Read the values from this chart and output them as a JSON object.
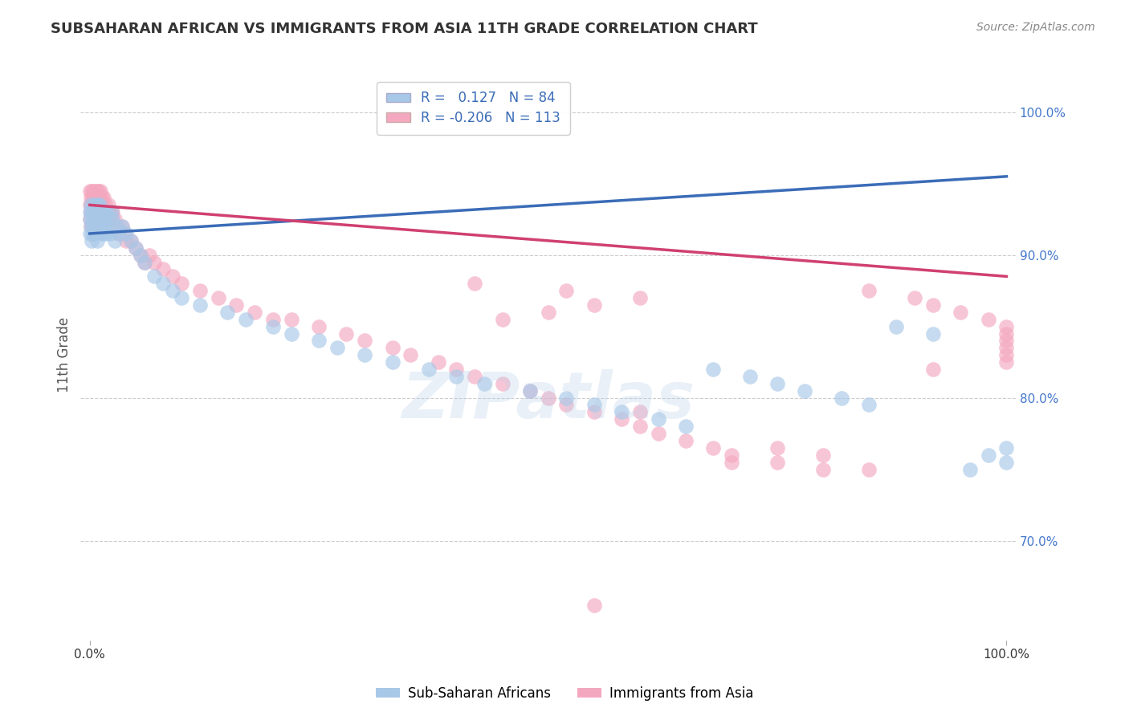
{
  "title": "SUBSAHARAN AFRICAN VS IMMIGRANTS FROM ASIA 11TH GRADE CORRELATION CHART",
  "source": "Source: ZipAtlas.com",
  "ylabel": "11th Grade",
  "r_blue": 0.127,
  "n_blue": 84,
  "r_pink": -0.206,
  "n_pink": 113,
  "blue_color": "#A8C8E8",
  "pink_color": "#F4A8C0",
  "line_blue": "#3B6CB7",
  "line_pink": "#D04070",
  "watermark": "ZIPatlas",
  "yticks": [
    70.0,
    80.0,
    90.0,
    100.0
  ],
  "ylim": [
    63.0,
    103.0
  ],
  "xlim": [
    -0.01,
    1.01
  ],
  "blue_line_x0": 0.0,
  "blue_line_y0": 91.5,
  "blue_line_x1": 1.0,
  "blue_line_y1": 95.5,
  "pink_line_x0": 0.0,
  "pink_line_y0": 93.5,
  "pink_line_x1": 1.0,
  "pink_line_y1": 88.5,
  "blue_scatter_x": [
    0.0,
    0.0,
    0.0,
    0.001,
    0.001,
    0.002,
    0.002,
    0.003,
    0.003,
    0.004,
    0.004,
    0.005,
    0.005,
    0.005,
    0.006,
    0.006,
    0.007,
    0.007,
    0.008,
    0.008,
    0.008,
    0.009,
    0.009,
    0.01,
    0.01,
    0.011,
    0.011,
    0.012,
    0.012,
    0.013,
    0.014,
    0.015,
    0.015,
    0.016,
    0.017,
    0.018,
    0.019,
    0.02,
    0.022,
    0.024,
    0.025,
    0.027,
    0.03,
    0.032,
    0.035,
    0.04,
    0.045,
    0.05,
    0.055,
    0.06,
    0.07,
    0.08,
    0.09,
    0.1,
    0.12,
    0.15,
    0.17,
    0.2,
    0.22,
    0.25,
    0.27,
    0.3,
    0.33,
    0.37,
    0.4,
    0.43,
    0.48,
    0.52,
    0.55,
    0.58,
    0.62,
    0.65,
    0.68,
    0.72,
    0.75,
    0.78,
    0.82,
    0.85,
    0.88,
    0.92,
    0.96,
    0.98,
    1.0,
    1.0
  ],
  "blue_scatter_y": [
    93.0,
    92.5,
    91.5,
    93.5,
    92.0,
    93.0,
    91.0,
    92.5,
    91.5,
    93.0,
    92.0,
    93.5,
    92.5,
    91.5,
    93.0,
    92.0,
    93.5,
    92.5,
    93.0,
    92.0,
    91.0,
    93.5,
    92.5,
    93.0,
    92.0,
    93.5,
    92.0,
    93.0,
    91.5,
    92.5,
    93.0,
    92.5,
    91.5,
    93.0,
    92.0,
    91.5,
    93.0,
    92.5,
    91.5,
    93.0,
    92.5,
    91.0,
    92.0,
    91.5,
    92.0,
    91.5,
    91.0,
    90.5,
    90.0,
    89.5,
    88.5,
    88.0,
    87.5,
    87.0,
    86.5,
    86.0,
    85.5,
    85.0,
    84.5,
    84.0,
    83.5,
    83.0,
    82.5,
    82.0,
    81.5,
    81.0,
    80.5,
    80.0,
    79.5,
    79.0,
    78.5,
    78.0,
    82.0,
    81.5,
    81.0,
    80.5,
    80.0,
    79.5,
    85.0,
    84.5,
    75.0,
    76.0,
    75.5,
    76.5
  ],
  "pink_scatter_x": [
    0.0,
    0.0,
    0.0,
    0.001,
    0.001,
    0.001,
    0.002,
    0.002,
    0.003,
    0.003,
    0.003,
    0.004,
    0.004,
    0.005,
    0.005,
    0.005,
    0.006,
    0.006,
    0.006,
    0.007,
    0.007,
    0.008,
    0.008,
    0.009,
    0.009,
    0.01,
    0.01,
    0.01,
    0.011,
    0.011,
    0.012,
    0.012,
    0.013,
    0.013,
    0.014,
    0.015,
    0.015,
    0.016,
    0.017,
    0.018,
    0.019,
    0.02,
    0.021,
    0.022,
    0.023,
    0.024,
    0.025,
    0.027,
    0.03,
    0.032,
    0.035,
    0.038,
    0.04,
    0.045,
    0.05,
    0.055,
    0.06,
    0.065,
    0.07,
    0.08,
    0.09,
    0.1,
    0.12,
    0.14,
    0.16,
    0.18,
    0.2,
    0.22,
    0.25,
    0.28,
    0.3,
    0.33,
    0.35,
    0.38,
    0.4,
    0.42,
    0.45,
    0.48,
    0.5,
    0.52,
    0.55,
    0.58,
    0.6,
    0.62,
    0.65,
    0.68,
    0.7,
    0.75,
    0.8,
    0.85,
    0.9,
    0.92,
    0.95,
    0.98,
    1.0,
    1.0,
    1.0,
    1.0,
    1.0,
    1.0,
    0.42,
    0.52,
    0.6,
    0.55,
    0.5,
    0.45,
    0.75,
    0.8,
    0.7,
    0.85,
    0.92,
    0.55,
    0.6
  ],
  "pink_scatter_y": [
    94.5,
    93.5,
    92.5,
    94.0,
    93.0,
    92.0,
    94.5,
    93.5,
    94.0,
    93.0,
    92.0,
    94.5,
    93.5,
    94.0,
    93.0,
    92.0,
    94.5,
    93.5,
    92.5,
    94.0,
    93.0,
    94.5,
    93.5,
    94.0,
    93.0,
    94.5,
    93.5,
    92.5,
    94.0,
    93.0,
    94.5,
    93.5,
    94.0,
    93.0,
    92.5,
    94.0,
    93.0,
    92.5,
    93.5,
    93.0,
    92.5,
    93.5,
    93.0,
    92.5,
    93.0,
    92.5,
    93.0,
    92.5,
    92.0,
    91.5,
    92.0,
    91.5,
    91.0,
    91.0,
    90.5,
    90.0,
    89.5,
    90.0,
    89.5,
    89.0,
    88.5,
    88.0,
    87.5,
    87.0,
    86.5,
    86.0,
    85.5,
    85.5,
    85.0,
    84.5,
    84.0,
    83.5,
    83.0,
    82.5,
    82.0,
    81.5,
    81.0,
    80.5,
    80.0,
    79.5,
    79.0,
    78.5,
    78.0,
    77.5,
    77.0,
    76.5,
    76.0,
    75.5,
    75.0,
    87.5,
    87.0,
    86.5,
    86.0,
    85.5,
    85.0,
    84.5,
    84.0,
    83.5,
    83.0,
    82.5,
    88.0,
    87.5,
    87.0,
    86.5,
    86.0,
    85.5,
    76.5,
    76.0,
    75.5,
    75.0,
    82.0,
    65.5,
    79.0
  ],
  "legend_label_blue": "Sub-Saharan Africans",
  "legend_label_pink": "Immigrants from Asia",
  "background_color": "#FFFFFF",
  "title_color": "#333333",
  "source_color": "#888888",
  "ylabel_color": "#555555",
  "ytick_color": "#4477CC",
  "grid_color": "#CCCCCC",
  "grid_linestyle": "--"
}
